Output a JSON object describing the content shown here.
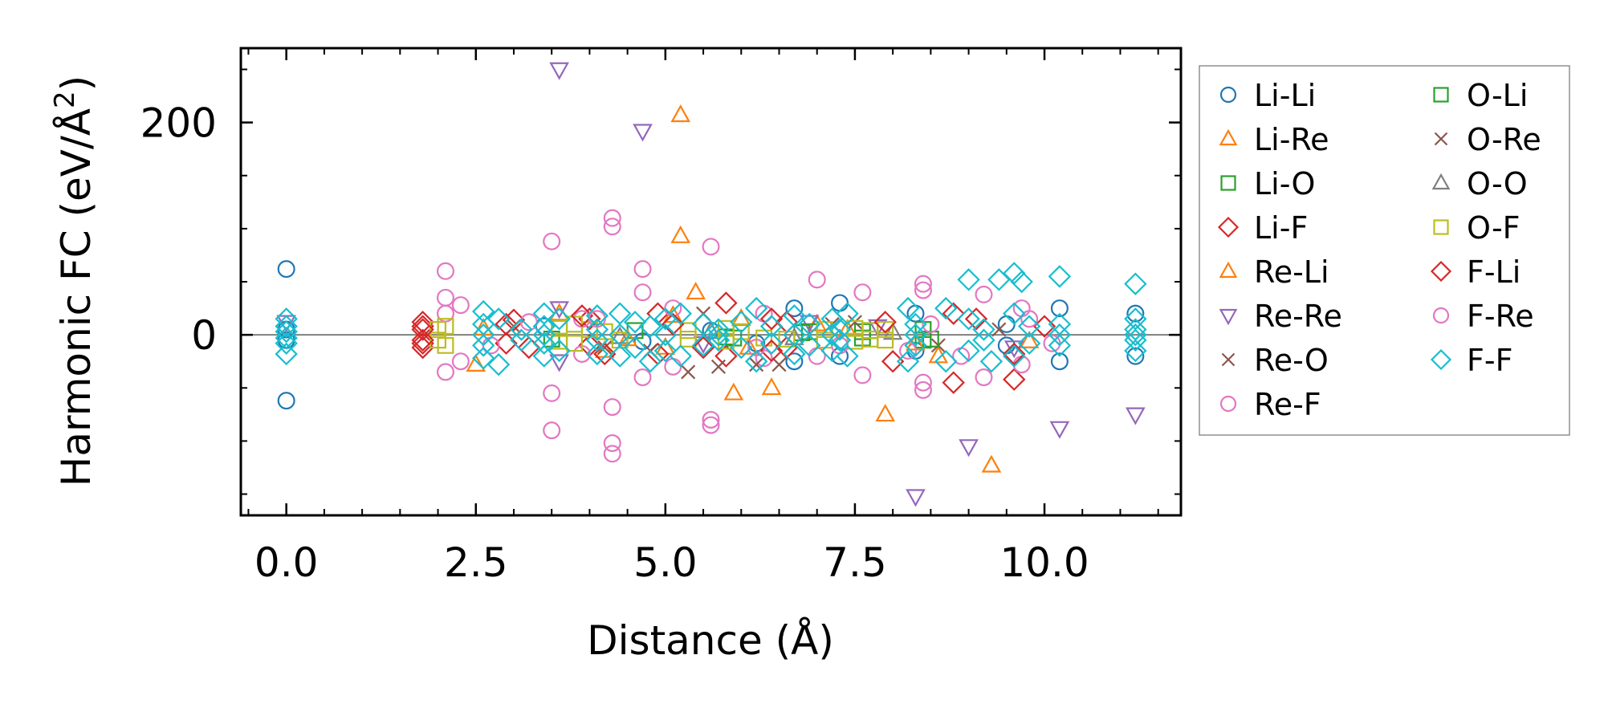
{
  "chart_data": {
    "type": "scatter",
    "title": "",
    "xlabel": "Distance (Å)",
    "ylabel": "Harmonic FC (eV/Å",
    "ylabel_sup": "2",
    "ylabel_close": ")",
    "xlim": [
      -0.6,
      11.8
    ],
    "ylim": [
      -170,
      270
    ],
    "x_ticks": [
      0.0,
      2.5,
      5.0,
      7.5,
      10.0
    ],
    "x_tick_labels": [
      "0.0",
      "2.5",
      "5.0",
      "7.5",
      "10.0"
    ],
    "y_ticks": [
      0,
      200
    ],
    "y_tick_labels": [
      "0",
      "200"
    ],
    "x_minor_step": 0.5,
    "y_minor_step": 50,
    "reference_line_y": 0,
    "legend_location": "outside-right",
    "legend_columns": 2,
    "series": [
      {
        "name": "Li-Li",
        "marker": "circle",
        "color": "#1f77b4",
        "points": [
          [
            0,
            62
          ],
          [
            0,
            -62
          ],
          [
            0,
            5
          ],
          [
            0,
            -5
          ],
          [
            6.7,
            25
          ],
          [
            6.7,
            -25
          ],
          [
            7.3,
            30
          ],
          [
            7.3,
            -20
          ],
          [
            8.3,
            20
          ],
          [
            8.3,
            -15
          ],
          [
            10.2,
            25
          ],
          [
            10.2,
            -25
          ],
          [
            11.2,
            20
          ],
          [
            11.2,
            -20
          ],
          [
            3.4,
            8
          ],
          [
            4.7,
            -6
          ],
          [
            5.6,
            4
          ],
          [
            6.2,
            -8
          ],
          [
            9.5,
            10
          ],
          [
            9.5,
            -10
          ]
        ]
      },
      {
        "name": "Li-Re",
        "marker": "triangle-up",
        "color": "#ff7f0e",
        "points": [
          [
            5.2,
            207
          ],
          [
            5.2,
            93
          ],
          [
            5.4,
            40
          ],
          [
            5.9,
            -55
          ],
          [
            6.4,
            -50
          ],
          [
            7.9,
            -75
          ],
          [
            9.3,
            -123
          ],
          [
            2.5,
            -28
          ],
          [
            3.6,
            20
          ],
          [
            4.2,
            -15
          ],
          [
            6.0,
            15
          ],
          [
            8.6,
            -20
          ],
          [
            5.0,
            -12
          ],
          [
            7.0,
            10
          ]
        ]
      },
      {
        "name": "Li-O",
        "marker": "square",
        "color": "#2ca02c",
        "points": [
          [
            8.4,
            5
          ],
          [
            8.4,
            -5
          ],
          [
            7.6,
            3
          ],
          [
            7.6,
            -3
          ],
          [
            6.8,
            2
          ],
          [
            5.8,
            -2
          ],
          [
            4.6,
            4
          ],
          [
            3.5,
            -4
          ]
        ]
      },
      {
        "name": "Li-F",
        "marker": "diamond",
        "color": "#d62728",
        "points": [
          [
            1.8,
            12
          ],
          [
            1.8,
            -12
          ],
          [
            1.8,
            8
          ],
          [
            1.8,
            -8
          ],
          [
            2.9,
            10
          ],
          [
            2.9,
            -8
          ],
          [
            4.0,
            15
          ],
          [
            4.0,
            -10
          ],
          [
            4.9,
            20
          ],
          [
            4.9,
            -18
          ],
          [
            5.8,
            30
          ],
          [
            5.8,
            -20
          ],
          [
            6.6,
            12
          ],
          [
            6.6,
            -12
          ],
          [
            8.0,
            -25
          ],
          [
            8.8,
            -45
          ],
          [
            9.6,
            -42
          ],
          [
            9.1,
            15
          ],
          [
            10.0,
            8
          ],
          [
            3.2,
            -12
          ]
        ]
      },
      {
        "name": "Re-Li",
        "marker": "triangle-up",
        "color": "#ff7f0e",
        "points": [
          [
            5.1,
            18
          ],
          [
            6.1,
            -12
          ],
          [
            8.3,
            -8
          ],
          [
            2.6,
            6
          ],
          [
            4.5,
            -4
          ],
          [
            7.4,
            5
          ],
          [
            9.8,
            -6
          ]
        ]
      },
      {
        "name": "Re-Re",
        "marker": "triangle-down",
        "color": "#9467bd",
        "points": [
          [
            0,
            12
          ],
          [
            3.6,
            250
          ],
          [
            4.7,
            192
          ],
          [
            3.6,
            25
          ],
          [
            3.6,
            -25
          ],
          [
            8.3,
            -152
          ],
          [
            9.0,
            -105
          ],
          [
            10.2,
            -88
          ],
          [
            11.2,
            -75
          ],
          [
            6.9,
            12
          ],
          [
            5.5,
            -8
          ],
          [
            7.8,
            8
          ],
          [
            9.6,
            -12
          ]
        ]
      },
      {
        "name": "Re-O",
        "marker": "x",
        "color": "#8c564b",
        "points": [
          [
            5.3,
            -35
          ],
          [
            5.7,
            -30
          ],
          [
            6.5,
            -28
          ],
          [
            4.2,
            -12
          ],
          [
            7.2,
            10
          ],
          [
            8.6,
            -10
          ],
          [
            3.0,
            8
          ],
          [
            9.4,
            5
          ]
        ]
      },
      {
        "name": "Re-F",
        "marker": "circle",
        "color": "#e377c2",
        "points": [
          [
            2.1,
            60
          ],
          [
            2.1,
            35
          ],
          [
            2.1,
            20
          ],
          [
            2.1,
            -35
          ],
          [
            2.3,
            28
          ],
          [
            2.3,
            -25
          ],
          [
            3.5,
            88
          ],
          [
            3.5,
            -55
          ],
          [
            3.5,
            -90
          ],
          [
            4.3,
            110
          ],
          [
            4.3,
            102
          ],
          [
            4.3,
            -68
          ],
          [
            4.3,
            -102
          ],
          [
            4.3,
            -112
          ],
          [
            4.7,
            62
          ],
          [
            4.7,
            40
          ],
          [
            4.7,
            -40
          ],
          [
            5.6,
            83
          ],
          [
            5.6,
            -80
          ],
          [
            5.6,
            -85
          ],
          [
            7.0,
            52
          ],
          [
            7.0,
            -20
          ],
          [
            7.6,
            40
          ],
          [
            7.6,
            -38
          ],
          [
            8.4,
            48
          ],
          [
            8.4,
            42
          ],
          [
            8.4,
            -45
          ],
          [
            8.4,
            -52
          ],
          [
            9.2,
            38
          ],
          [
            9.2,
            -40
          ],
          [
            9.7,
            25
          ],
          [
            9.7,
            -28
          ],
          [
            5.1,
            25
          ],
          [
            5.1,
            -30
          ],
          [
            6.3,
            20
          ],
          [
            6.3,
            -22
          ],
          [
            8.2,
            -15
          ],
          [
            8.9,
            -20
          ],
          [
            3.9,
            15
          ],
          [
            3.9,
            -18
          ]
        ]
      },
      {
        "name": "O-Li",
        "marker": "square",
        "color": "#2ca02c",
        "points": [
          [
            7.7,
            4
          ],
          [
            8.5,
            -4
          ],
          [
            6.9,
            3
          ],
          [
            5.9,
            -3
          ]
        ]
      },
      {
        "name": "O-Re",
        "marker": "x",
        "color": "#8c564b",
        "points": [
          [
            6.2,
            -28
          ],
          [
            5.5,
            20
          ],
          [
            4.8,
            -15
          ],
          [
            7.5,
            12
          ]
        ]
      },
      {
        "name": "O-O",
        "marker": "triangle-up",
        "color": "#7f7f7f",
        "points": [
          [
            5.6,
            3
          ],
          [
            6.7,
            -3
          ],
          [
            8.0,
            2
          ],
          [
            4.4,
            -2
          ]
        ]
      },
      {
        "name": "O-F",
        "marker": "square",
        "color": "#bcbd22",
        "points": [
          [
            2.0,
            5
          ],
          [
            2.0,
            -5
          ],
          [
            2.1,
            8
          ],
          [
            2.1,
            -10
          ],
          [
            3.6,
            6
          ],
          [
            3.6,
            -6
          ],
          [
            3.8,
            10
          ],
          [
            3.8,
            -8
          ],
          [
            4.0,
            5
          ],
          [
            4.4,
            -5
          ],
          [
            5.3,
            4
          ],
          [
            5.3,
            -4
          ],
          [
            5.8,
            6
          ],
          [
            5.8,
            -6
          ],
          [
            6.0,
            3
          ],
          [
            6.3,
            -3
          ],
          [
            7.1,
            5
          ],
          [
            7.1,
            -5
          ],
          [
            7.5,
            6
          ],
          [
            7.5,
            -6
          ],
          [
            7.7,
            4
          ],
          [
            7.7,
            -4
          ],
          [
            7.9,
            5
          ],
          [
            7.9,
            -5
          ],
          [
            4.2,
            3
          ],
          [
            6.6,
            -4
          ]
        ]
      },
      {
        "name": "F-Li",
        "marker": "diamond",
        "color": "#d62728",
        "points": [
          [
            1.8,
            5
          ],
          [
            1.8,
            -5
          ],
          [
            3.0,
            14
          ],
          [
            4.2,
            -18
          ],
          [
            5.1,
            10
          ],
          [
            6.4,
            15
          ],
          [
            6.4,
            -15
          ],
          [
            7.9,
            12
          ],
          [
            8.8,
            20
          ],
          [
            9.6,
            -18
          ],
          [
            3.9,
            18
          ],
          [
            5.5,
            -12
          ]
        ]
      },
      {
        "name": "F-Re",
        "marker": "circle",
        "color": "#e377c2",
        "points": [
          [
            4.1,
            15
          ],
          [
            6.2,
            -12
          ],
          [
            8.5,
            10
          ],
          [
            9.8,
            15
          ],
          [
            2.7,
            -10
          ],
          [
            3.2,
            12
          ],
          [
            7.3,
            -10
          ],
          [
            10.1,
            -8
          ]
        ]
      },
      {
        "name": "F-F",
        "marker": "diamond",
        "color": "#17becf",
        "points": [
          [
            0,
            8
          ],
          [
            0,
            -8
          ],
          [
            0,
            15
          ],
          [
            0,
            -18
          ],
          [
            0,
            3
          ],
          [
            0,
            -3
          ],
          [
            2.6,
            22
          ],
          [
            2.6,
            -22
          ],
          [
            2.6,
            10
          ],
          [
            2.6,
            -10
          ],
          [
            2.6,
            0
          ],
          [
            2.8,
            -28
          ],
          [
            2.8,
            15
          ],
          [
            3.1,
            5
          ],
          [
            3.1,
            -5
          ],
          [
            3.4,
            20
          ],
          [
            3.4,
            -20
          ],
          [
            3.4,
            8
          ],
          [
            3.4,
            -8
          ],
          [
            3.4,
            0
          ],
          [
            3.6,
            15
          ],
          [
            3.6,
            -15
          ],
          [
            4.1,
            18
          ],
          [
            4.1,
            -18
          ],
          [
            4.1,
            5
          ],
          [
            4.1,
            -5
          ],
          [
            4.4,
            20
          ],
          [
            4.4,
            -20
          ],
          [
            4.4,
            0
          ],
          [
            4.6,
            12
          ],
          [
            4.6,
            -12
          ],
          [
            4.8,
            -25
          ],
          [
            4.8,
            8
          ],
          [
            5.0,
            15
          ],
          [
            5.0,
            -15
          ],
          [
            5.0,
            0
          ],
          [
            5.2,
            20
          ],
          [
            5.2,
            -20
          ],
          [
            5.5,
            10
          ],
          [
            5.5,
            -10
          ],
          [
            5.7,
            5
          ],
          [
            5.7,
            -5
          ],
          [
            5.7,
            0
          ],
          [
            6.0,
            12
          ],
          [
            6.0,
            -12
          ],
          [
            6.2,
            25
          ],
          [
            6.2,
            -25
          ],
          [
            6.4,
            8
          ],
          [
            6.4,
            -8
          ],
          [
            6.7,
            18
          ],
          [
            6.7,
            -18
          ],
          [
            6.7,
            0
          ],
          [
            6.9,
            10
          ],
          [
            6.9,
            -10
          ],
          [
            7.2,
            15
          ],
          [
            7.2,
            -15
          ],
          [
            7.2,
            0
          ],
          [
            7.3,
            5
          ],
          [
            7.3,
            -5
          ],
          [
            7.4,
            20
          ],
          [
            7.4,
            -20
          ],
          [
            8.2,
            25
          ],
          [
            8.2,
            -25
          ],
          [
            8.3,
            10
          ],
          [
            8.3,
            -10
          ],
          [
            8.3,
            0
          ],
          [
            8.7,
            25
          ],
          [
            8.7,
            -25
          ],
          [
            9.0,
            52
          ],
          [
            9.0,
            15
          ],
          [
            9.0,
            -15
          ],
          [
            9.2,
            5
          ],
          [
            9.2,
            -5
          ],
          [
            9.3,
            -25
          ],
          [
            9.4,
            52
          ],
          [
            9.6,
            58
          ],
          [
            9.6,
            20
          ],
          [
            9.6,
            -20
          ],
          [
            9.7,
            50
          ],
          [
            9.8,
            8
          ],
          [
            9.8,
            -8
          ],
          [
            10.2,
            55
          ],
          [
            10.2,
            10
          ],
          [
            10.2,
            -10
          ],
          [
            10.2,
            0
          ],
          [
            11.2,
            48
          ],
          [
            11.2,
            15
          ],
          [
            11.2,
            -15
          ],
          [
            11.2,
            5
          ],
          [
            11.2,
            -5
          ],
          [
            11.2,
            0
          ]
        ]
      }
    ]
  }
}
